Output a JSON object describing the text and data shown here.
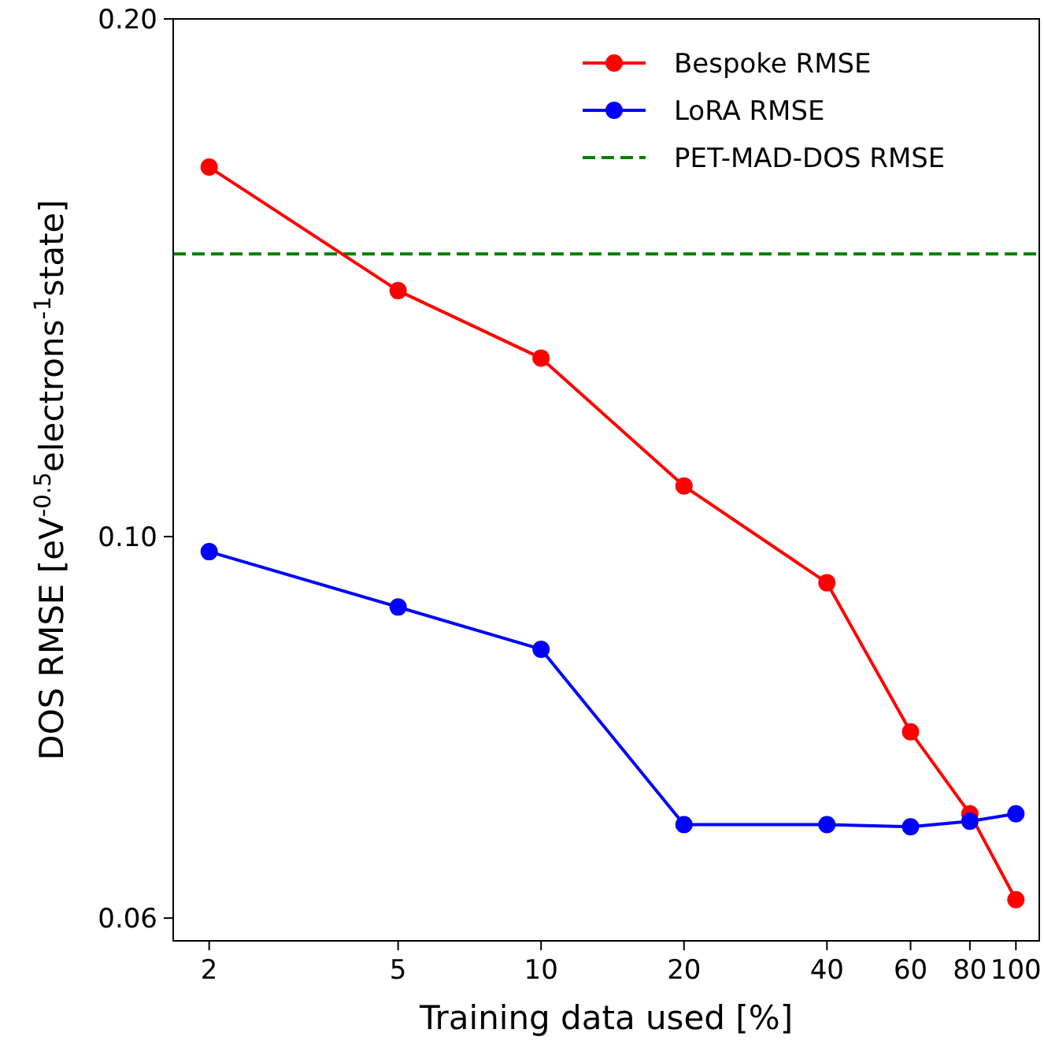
{
  "chart_data": {
    "type": "line",
    "xlabel": "Training data used [%]",
    "ylabel": "DOS RMSE [eV$^{-0.5}$electrons$^{-1}$state]",
    "log": "xy",
    "x": [
      2,
      5,
      10,
      20,
      40,
      60,
      80,
      100
    ],
    "xlim": [
      1.68,
      112
    ],
    "xticks": [
      2,
      5,
      10,
      20,
      40,
      60,
      80,
      100
    ],
    "ylim": [
      0.0582,
      0.2
    ],
    "yticks": [
      {
        "value": 0.06,
        "label": "0.06"
      },
      {
        "value": 0.1,
        "label": "0.10"
      },
      {
        "value": 0.2,
        "label": "0.20"
      }
    ],
    "marker": "circle",
    "line_style": "solid",
    "grid": false,
    "legend": "top right",
    "series": [
      {
        "name": "Bespoke RMSE",
        "color": "#ff0000",
        "values": [
          0.164,
          0.139,
          0.127,
          0.107,
          0.094,
          0.077,
          0.069,
          0.0615
        ]
      },
      {
        "name": "LoRA RMSE",
        "color": "#0000ff",
        "values": [
          0.098,
          0.091,
          0.086,
          0.068,
          0.068,
          0.0678,
          0.0683,
          0.069
        ]
      }
    ],
    "ref_lines": [
      {
        "axis": "y",
        "value": 0.146,
        "label": "PET-MAD-DOS RMSE",
        "color": "#008000",
        "line_style": "dashed"
      }
    ]
  }
}
